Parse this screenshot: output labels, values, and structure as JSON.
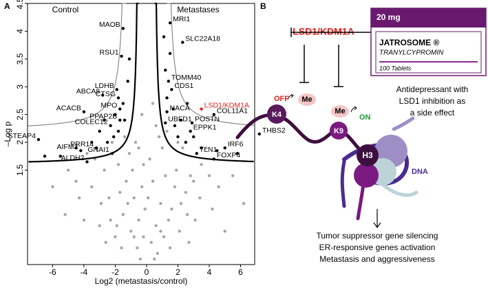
{
  "chart_data": {
    "type": "scatter",
    "panel_label": "A",
    "annotations": [
      "Control",
      "Metastases"
    ],
    "x_label": "Log2 (metastasis/control)",
    "y_label": "–Log p",
    "xlim": [
      -7.6,
      6.9
    ],
    "ylim": [
      -0.2,
      4.5
    ],
    "xticks": [
      -6,
      -4,
      -2,
      0,
      2,
      4,
      6
    ],
    "yticks": [
      1.5,
      2,
      2.5,
      3,
      3.5,
      4,
      4.5
    ],
    "series": [
      {
        "color": "#a6a6a6",
        "x": [
          -0.2,
          0.3,
          -0.5,
          0.6,
          -1.0,
          1.1,
          -0.8,
          0.9,
          -1.5,
          1.6,
          -2.0,
          2.1,
          -0.3,
          0.4,
          -1.3,
          1.2,
          -2.4,
          2.5,
          -3.0,
          3.1,
          -0.6,
          0.7,
          -1.8,
          1.9,
          -2.7,
          2.8,
          -3.5,
          3.4,
          -4.0,
          4.2,
          -0.1,
          0.1,
          -1.1,
          1.0,
          -0.7,
          0.8,
          -2.2,
          2.3,
          -4.5,
          4.6,
          -5.2,
          5.0,
          -0.4,
          0.5,
          -1.6,
          1.5,
          -2.6,
          2.7,
          -3.3,
          3.5,
          -0.9,
          1.3,
          -1.4,
          2.0,
          -0.2,
          0.2,
          -3.8,
          3.8,
          -5.0,
          5.5,
          -6.0,
          6.2,
          -1.2,
          1.4,
          -2.9,
          2.6,
          -0.5,
          0.6,
          -0.3,
          0.4,
          -1.7,
          1.8,
          -2.3,
          2.2,
          -4.3,
          4.0,
          -0.8,
          0.9,
          -1.9,
          3.0
        ],
        "values": [
          0.3,
          0.2,
          0.6,
          0.5,
          0.4,
          0.3,
          1.0,
          0.9,
          0.7,
          0.8,
          0.3,
          0.4,
          1.2,
          1.3,
          1.3,
          1.4,
          1.0,
          1.1,
          0.5,
          0.6,
          0.1,
          0.0,
          1.6,
          1.5,
          1.5,
          1.4,
          1.2,
          1.0,
          0.6,
          0.8,
          0.8,
          1.0,
          1.8,
          1.9,
          2.0,
          2.1,
          2.0,
          1.9,
          1.3,
          1.2,
          0.7,
          0.4,
          -0.1,
          -0.1,
          0.1,
          0.1,
          0.2,
          0.2,
          1.7,
          1.6,
          1.5,
          2.2,
          2.1,
          2.0,
          1.6,
          1.7,
          1.8,
          1.9,
          1.5,
          1.4,
          1.2,
          0.9,
          0.9,
          0.6,
          0.9,
          0.7,
          1.9,
          2.3,
          2.5,
          2.7,
          1.1,
          1.2,
          0.6,
          0.9,
          1.0,
          1.4,
          0.3,
          0.4,
          0.5,
          1.3
        ]
      },
      {
        "color": "#000000",
        "x": [
          -2.5,
          -3.0,
          -2.0,
          -1.5,
          -1.2,
          -1.1,
          -3.5,
          -4.5,
          -5.5,
          -2.1,
          -1.8,
          -1.4,
          -2.7,
          -6.5,
          2.0,
          1.8,
          2.5,
          3.5,
          1.3,
          1.2,
          1.5,
          1.1,
          2.2,
          3.0,
          4.5,
          5.8,
          1.7,
          2.6
        ],
        "values": [
          2.0,
          2.2,
          2.5,
          2.7,
          3.1,
          3.5,
          2.0,
          1.9,
          1.75,
          2.1,
          2.2,
          2.4,
          2.4,
          1.75,
          2.1,
          2.3,
          2.0,
          1.9,
          2.8,
          3.3,
          3.6,
          3.9,
          2.4,
          2.1,
          1.85,
          1.8,
          2.6,
          2.7
        ]
      },
      {
        "color": "#000000",
        "labels": [
          "MAOB",
          "RSU1",
          "LDHB",
          "ABCA8",
          "CTSG",
          "MPO",
          "ACACB",
          "PPAP2B",
          "COLEC12",
          "STEAP4",
          "PRR14",
          "AIFM2",
          "GNAI1",
          "ALDH2",
          "MRI1",
          "SLC22A18",
          "TOMM40",
          "CDS1",
          "LSD1/KDM1A",
          "COL11A1",
          "NACA",
          "UBFD1",
          "POSTN",
          "EPPK1",
          "THBS2",
          "IRF6",
          "TLN1",
          "FOXP4"
        ],
        "label_colors": [
          "#000",
          "#000",
          "#000",
          "#000",
          "#000",
          "#000",
          "#000",
          "#000",
          "#000",
          "#000",
          "#000",
          "#000",
          "#000",
          "#000",
          "#000",
          "#000",
          "#000",
          "#000",
          "#e0201b",
          "#000",
          "#000",
          "#000",
          "#000",
          "#000",
          "#000",
          "#000",
          "#000",
          "#000"
        ],
        "x": [
          -1.5,
          -1.6,
          -1.9,
          -2.8,
          -1.8,
          -1.7,
          -4.0,
          -1.7,
          -2.3,
          -6.9,
          -3.2,
          -4.2,
          -2.2,
          -3.8,
          1.5,
          2.3,
          1.4,
          1.6,
          3.5,
          4.3,
          1.3,
          1.2,
          2.9,
          2.8,
          7.2,
          5.0,
          3.2,
          4.3
        ],
        "values": [
          4.05,
          3.55,
          2.95,
          2.85,
          2.8,
          2.6,
          2.55,
          2.4,
          2.3,
          2.05,
          1.9,
          1.85,
          1.8,
          1.65,
          4.15,
          3.8,
          3.1,
          2.95,
          2.6,
          2.5,
          2.55,
          2.35,
          2.35,
          2.2,
          2.15,
          1.9,
          1.8,
          1.7
        ]
      }
    ]
  },
  "diagram": {
    "panel_label": "B",
    "enzyme": "LSD1/KDM1A",
    "drug": {
      "dose": "20 mg",
      "name": "JATROSOME ®",
      "compound": "TRANYLCYPROMIN",
      "count": "100 Tablets"
    },
    "note": [
      "Antidepressant with",
      "LSD1 inhibition as",
      "a side effect"
    ],
    "k4_state": "OFF",
    "k4_mark": "Me",
    "k4": "K4",
    "k9_mark": "Me",
    "k9_state": "ON",
    "k9": "K9",
    "histone": "H3",
    "dna": "DNA",
    "outcomes": [
      "Tumor suppressor gene silencing",
      "ER-responsive genes activation",
      "Metastasis and aggressiveness"
    ]
  }
}
